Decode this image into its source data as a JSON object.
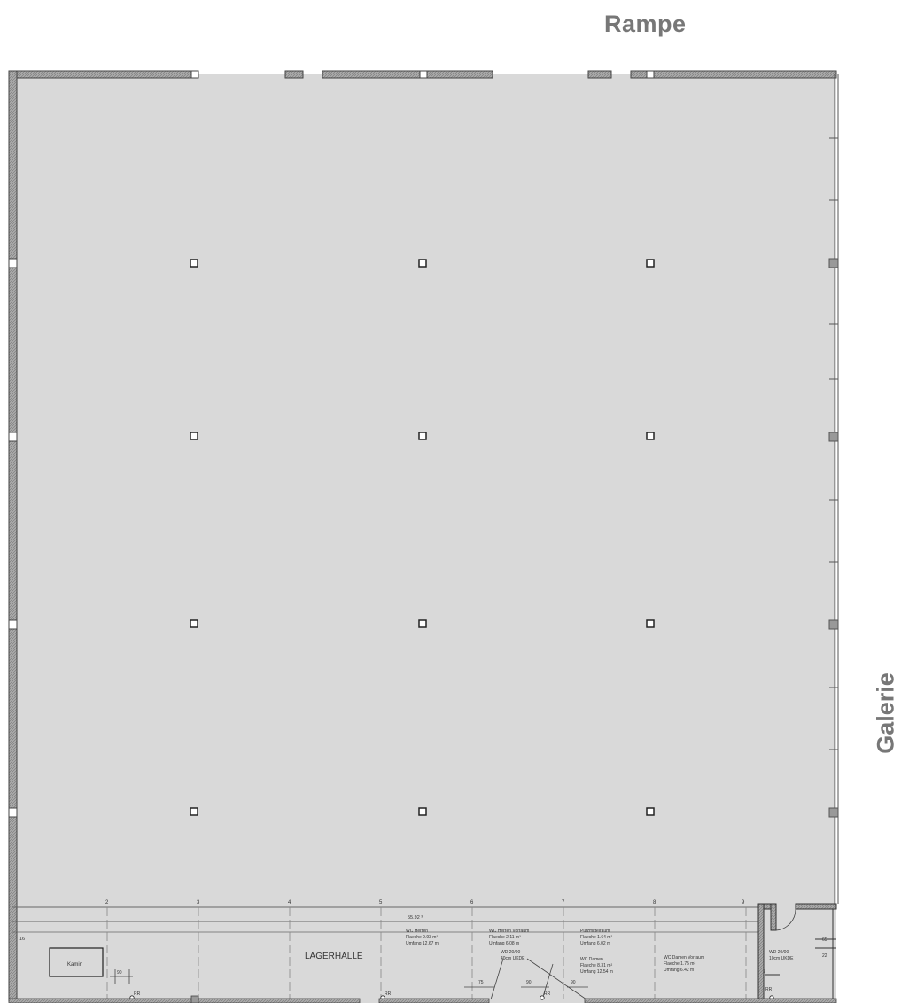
{
  "labels": {
    "rampe": "Rampe",
    "galerie": "Galerie"
  },
  "plan": {
    "axis_numbers": [
      "2",
      "3",
      "4",
      "5",
      "6",
      "7",
      "8",
      "9"
    ],
    "left_mark": "16",
    "dimension_top": "55.92 ³",
    "hall_name": "LAGERHALLE",
    "kamin": "Kamin",
    "rooms": [
      {
        "name": "WC Herren",
        "line1": "Flaeche  9.93 m²",
        "line2": "Umfang  12.67 m"
      },
      {
        "name": "WC Herren Vorraum",
        "line1": "Flaeche  2.11 m²",
        "line2": "Umfang  6.08 m"
      },
      {
        "name": "Putzmittelraum",
        "line1": "Flaeche  1.64 m²",
        "line2": "Umfang  6.02 m"
      },
      {
        "name": "WC Damen",
        "line1": "Flaeche  8.31 m²",
        "line2": "Umfang  12.54 m"
      },
      {
        "name": "WC Damen Vorraum",
        "line1": "Flaeche  1.75 m²",
        "line2": "Umfang  6.42 m"
      }
    ],
    "doors": [
      {
        "line1": "WD 20/00",
        "line2": "40cm UKDE"
      },
      {
        "line1": "WD 20/00",
        "line2": "10cm UKDE"
      }
    ],
    "dims": [
      "90",
      "75",
      "90",
      "90",
      "65",
      "22",
      "15"
    ],
    "rr": "RR"
  }
}
